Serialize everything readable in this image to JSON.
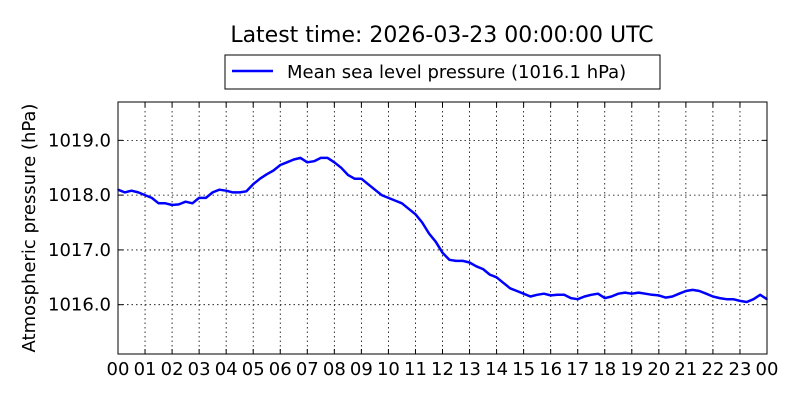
{
  "chart_data": {
    "type": "line",
    "title": "Latest time: 2026-03-23 00:00:00 UTC",
    "xlabel": "",
    "ylabel": "Atmospheric pressure (hPa)",
    "legend_position": "top-center",
    "grid": true,
    "xlim": [
      0,
      24
    ],
    "ylim": [
      1015.1,
      1019.7
    ],
    "x_ticks": [
      0,
      1,
      2,
      3,
      4,
      5,
      6,
      7,
      8,
      9,
      10,
      11,
      12,
      13,
      14,
      15,
      16,
      17,
      18,
      19,
      20,
      21,
      22,
      23,
      24
    ],
    "x_tick_labels": [
      "00",
      "01",
      "02",
      "03",
      "04",
      "05",
      "06",
      "07",
      "08",
      "09",
      "10",
      "11",
      "12",
      "13",
      "14",
      "15",
      "16",
      "17",
      "18",
      "19",
      "20",
      "21",
      "22",
      "23",
      "00"
    ],
    "y_ticks": [
      1016.0,
      1017.0,
      1018.0,
      1019.0
    ],
    "y_tick_labels": [
      "1016.0",
      "1017.0",
      "1018.0",
      "1019.0"
    ],
    "series": [
      {
        "name": "Mean sea level pressure (1016.1 hPa)",
        "color": "#0000ff",
        "x": [
          0,
          0.25,
          0.5,
          0.75,
          1.0,
          1.25,
          1.5,
          1.75,
          2.0,
          2.25,
          2.5,
          2.75,
          3.0,
          3.25,
          3.5,
          3.75,
          4.0,
          4.25,
          4.5,
          4.75,
          5.0,
          5.25,
          5.5,
          5.75,
          6.0,
          6.25,
          6.5,
          6.75,
          7.0,
          7.25,
          7.5,
          7.75,
          8.0,
          8.25,
          8.5,
          8.75,
          9.0,
          9.25,
          9.5,
          9.75,
          10.0,
          10.25,
          10.5,
          10.75,
          11.0,
          11.25,
          11.5,
          11.75,
          12.0,
          12.25,
          12.5,
          12.75,
          13.0,
          13.25,
          13.5,
          13.75,
          14.0,
          14.25,
          14.5,
          14.75,
          15.0,
          15.25,
          15.5,
          15.75,
          16.0,
          16.25,
          16.5,
          16.75,
          17.0,
          17.25,
          17.5,
          17.75,
          18.0,
          18.25,
          18.5,
          18.75,
          19.0,
          19.25,
          19.5,
          19.75,
          20.0,
          20.25,
          20.5,
          20.75,
          21.0,
          21.25,
          21.5,
          21.75,
          22.0,
          22.25,
          22.5,
          22.75,
          23.0,
          23.25,
          23.5,
          23.75,
          24.0
        ],
        "y": [
          1018.1,
          1018.05,
          1018.08,
          1018.05,
          1018.0,
          1017.95,
          1017.85,
          1017.85,
          1017.82,
          1017.83,
          1017.88,
          1017.85,
          1017.95,
          1017.95,
          1018.05,
          1018.1,
          1018.08,
          1018.05,
          1018.05,
          1018.07,
          1018.2,
          1018.3,
          1018.38,
          1018.45,
          1018.55,
          1018.6,
          1018.65,
          1018.68,
          1018.6,
          1018.62,
          1018.68,
          1018.68,
          1018.6,
          1018.5,
          1018.37,
          1018.3,
          1018.3,
          1018.2,
          1018.1,
          1018.0,
          1017.95,
          1017.9,
          1017.85,
          1017.75,
          1017.65,
          1017.5,
          1017.3,
          1017.15,
          1016.95,
          1016.82,
          1016.8,
          1016.8,
          1016.77,
          1016.7,
          1016.65,
          1016.55,
          1016.5,
          1016.4,
          1016.3,
          1016.25,
          1016.2,
          1016.15,
          1016.18,
          1016.2,
          1016.17,
          1016.18,
          1016.18,
          1016.12,
          1016.1,
          1016.15,
          1016.18,
          1016.2,
          1016.12,
          1016.15,
          1016.2,
          1016.22,
          1016.2,
          1016.22,
          1016.2,
          1016.18,
          1016.17,
          1016.13,
          1016.15,
          1016.2,
          1016.25,
          1016.27,
          1016.25,
          1016.2,
          1016.15,
          1016.12,
          1016.1,
          1016.1,
          1016.07,
          1016.05,
          1016.1,
          1016.18,
          1016.1
        ]
      }
    ]
  }
}
